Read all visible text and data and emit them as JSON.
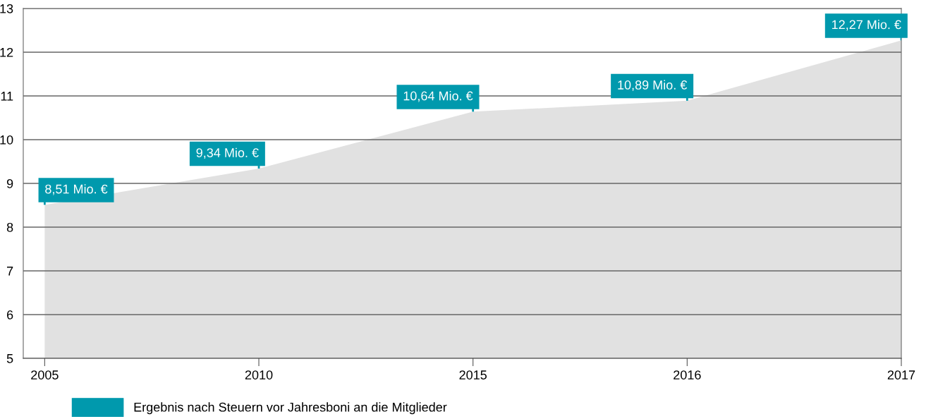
{
  "chart_data": {
    "type": "area",
    "categories": [
      "2005",
      "2010",
      "2015",
      "2016",
      "2017"
    ],
    "series": [
      {
        "name": "Ergebnis nach Steuern vor Jahresboni an die Mitglieder",
        "color": "#e1e1e1",
        "values": [
          8.51,
          9.34,
          10.64,
          10.89,
          12.27
        ],
        "value_labels": [
          "8,51 Mio. €",
          "9,34 Mio. €",
          "10,64 Mio. €",
          "10,89 Mio. €",
          "12,27 Mio. €"
        ]
      }
    ],
    "ylim": [
      5,
      13
    ],
    "yticks": [
      5,
      6,
      7,
      8,
      9,
      10,
      11,
      12,
      13
    ],
    "grid": "y",
    "legend": "bottom left"
  }
}
